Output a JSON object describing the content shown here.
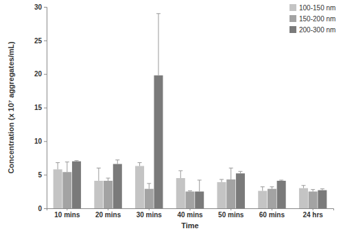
{
  "chart_data": {
    "type": "bar",
    "x_label": "Time",
    "y_label": "Concentration (x 10⁷ aggregates/mL)",
    "categories": [
      "10 mins",
      "20 mins",
      "30 mins",
      "40 mins",
      "50 mins",
      "60 mins",
      "24 hrs"
    ],
    "series": [
      {
        "name": "100-150 nm",
        "color": "#c4c4c4",
        "values": [
          5.8,
          4.1,
          6.3,
          4.5,
          3.9,
          2.6,
          3.0
        ],
        "errors": [
          1.0,
          1.9,
          0.5,
          1.1,
          0.4,
          0.6,
          0.4
        ]
      },
      {
        "name": "150-200 nm",
        "color": "#a3a3a3",
        "values": [
          5.4,
          4.1,
          2.9,
          2.5,
          4.3,
          2.9,
          2.5
        ],
        "errors": [
          1.5,
          0.4,
          0.8,
          0.1,
          1.7,
          0.3,
          0.3
        ]
      },
      {
        "name": "200-300 nm",
        "color": "#7a7a7a",
        "values": [
          7.0,
          6.6,
          19.8,
          2.5,
          5.2,
          4.1,
          2.7
        ],
        "errors": [
          0.1,
          0.6,
          9.2,
          1.7,
          0.3,
          0.1,
          0.2
        ]
      }
    ],
    "ylim": [
      0,
      30
    ],
    "yticks": [
      0,
      5,
      10,
      15,
      20,
      25,
      30
    ],
    "grid": false,
    "legend": "top-right"
  }
}
